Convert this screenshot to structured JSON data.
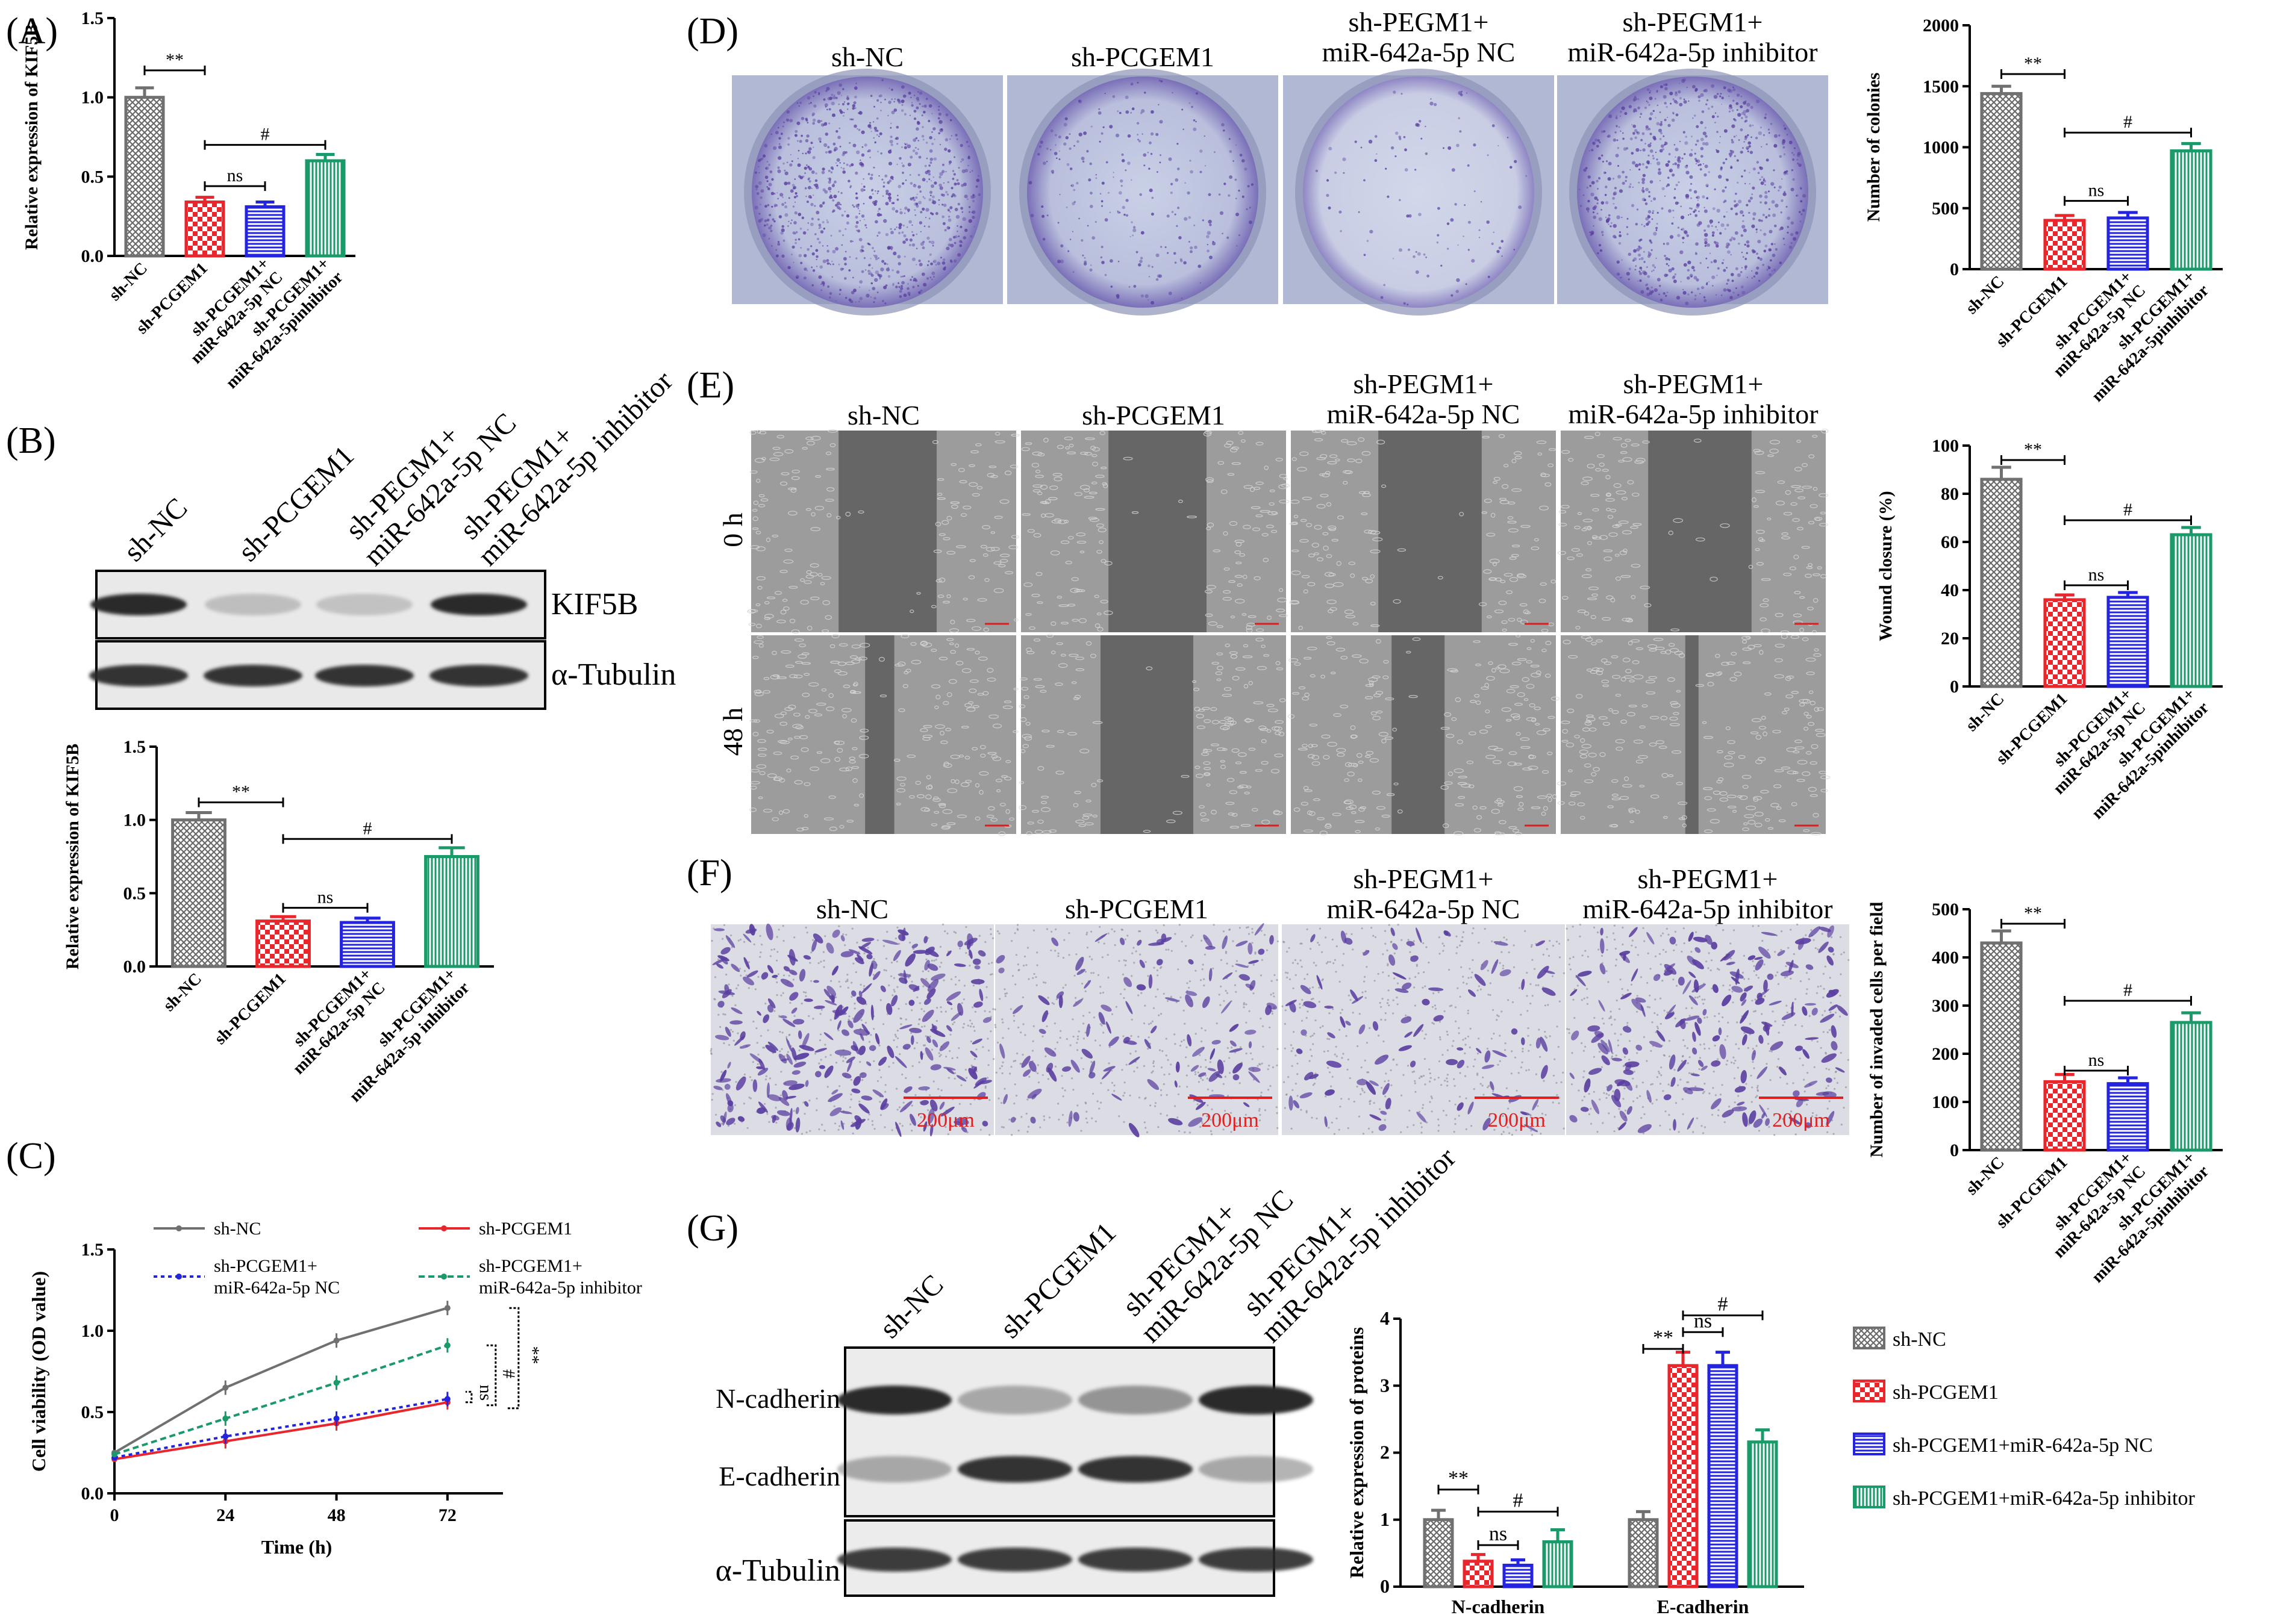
{
  "colors": {
    "gray": "#707070",
    "red": "#e8262c",
    "blue": "#2424e0",
    "green": "#1a9a68",
    "stain": "#5a3fa0",
    "blotDark": "#2a2a2a"
  },
  "panels": {
    "A": {
      "letter": "(A)",
      "chart": {
        "type": "bar",
        "ylabel": "Relative expression of KIF5B",
        "yticks": [
          "0.0",
          "0.5",
          "1.0",
          "1.5"
        ],
        "ylim": [
          0,
          1.5
        ],
        "categories": [
          "sh-NC",
          "sh-PCGEM1",
          "sh-PCGEM1+ miR-642a-5p NC",
          "sh-PCGEM1+ miR-642a-5pinhibitor"
        ],
        "cat_lines": [
          [
            "sh-NC"
          ],
          [
            "sh-PCGEM1"
          ],
          [
            "sh-PCGEM1+",
            "miR-642a-5p NC"
          ],
          [
            "sh-PCGEM1+",
            "miR-642a-5pinhibitor"
          ]
        ],
        "values": [
          1.0,
          0.34,
          0.31,
          0.6
        ],
        "errors": [
          0.06,
          0.03,
          0.03,
          0.04
        ],
        "sig": [
          {
            "from": 0,
            "to": 1,
            "label": "**",
            "level": 1.17
          },
          {
            "from": 1,
            "to": 3,
            "label": "#",
            "level": 0.7
          },
          {
            "from": 1,
            "to": 2,
            "label": "ns",
            "level": 0.44
          }
        ]
      }
    },
    "B": {
      "letter": "(B)",
      "lanes": [
        "sh-NC",
        "sh-PCGEM1",
        "sh-PEGM1+ miR-642a-5p NC",
        "sh-PEGM1+ miR-642a-5p inhibitor"
      ],
      "lane_lines": [
        [
          "sh-NC"
        ],
        [
          "sh-PCGEM1"
        ],
        [
          "sh-PEGM1+",
          "miR-642a-5p NC"
        ],
        [
          "sh-PEGM1+",
          "miR-642a-5p inhibitor"
        ]
      ],
      "blot_labels": [
        "KIF5B",
        "α-Tubulin"
      ],
      "chart": {
        "type": "bar",
        "ylabel": "Relative expression of KIF5B",
        "yticks": [
          "0.0",
          "0.5",
          "1.0",
          "1.5"
        ],
        "ylim": [
          0,
          1.5
        ],
        "categories": [
          "sh-NC",
          "sh-PCGEM1",
          "sh-PCGEM1+ miR-642a-5p NC",
          "sh-PCGEM1+ miR-642a-5p inhibitor"
        ],
        "cat_lines": [
          [
            "sh-NC"
          ],
          [
            "sh-PCGEM1"
          ],
          [
            "sh-PCGEM1+",
            "miR-642a-5p NC"
          ],
          [
            "sh-PCGEM1+",
            "miR-642a-5p inhibitor"
          ]
        ],
        "values": [
          1.0,
          0.31,
          0.3,
          0.75
        ],
        "errors": [
          0.05,
          0.03,
          0.03,
          0.06
        ],
        "sig": [
          {
            "from": 0,
            "to": 1,
            "label": "**",
            "level": 1.12
          },
          {
            "from": 1,
            "to": 3,
            "label": "#",
            "level": 0.87
          },
          {
            "from": 1,
            "to": 2,
            "label": "ns",
            "level": 0.4
          }
        ]
      }
    },
    "C": {
      "letter": "(C)",
      "chart": {
        "type": "line",
        "xlabel": "Time (h)",
        "ylabel": "Cell viability (OD value)",
        "x": [
          0,
          24,
          48,
          72
        ],
        "xticks": [
          "0",
          "24",
          "48",
          "72"
        ],
        "yticks": [
          "0.0",
          "0.5",
          "1.0",
          "1.5"
        ],
        "ylim": [
          0,
          1.5
        ],
        "xlim": [
          0,
          84
        ],
        "series": [
          {
            "name": "sh-NC",
            "lines": [
              "sh-NC"
            ],
            "values": [
              0.25,
              0.65,
              0.94,
              1.14
            ]
          },
          {
            "name": "sh-PCGEM1",
            "lines": [
              "sh-PCGEM1"
            ],
            "values": [
              0.21,
              0.32,
              0.43,
              0.56
            ]
          },
          {
            "name": "sh-PCGEM1+ miR-642a-5p NC",
            "lines": [
              "sh-PCGEM1+",
              "miR-642a-5p NC"
            ],
            "values": [
              0.22,
              0.35,
              0.46,
              0.58
            ]
          },
          {
            "name": "sh-PCGEM1+ miR-642a-5p inhibitor",
            "lines": [
              "sh-PCGEM1+",
              "miR-642a-5p inhibitor"
            ],
            "values": [
              0.24,
              0.46,
              0.68,
              0.91
            ]
          }
        ],
        "sig": [
          "ns",
          "#",
          "**"
        ]
      }
    },
    "D": {
      "letter": "(D)",
      "image_labels": [
        "sh-NC",
        "sh-PCGEM1",
        "sh-PEGM1+ miR-642a-5p NC",
        "sh-PEGM1+ miR-642a-5p inhibitor"
      ],
      "image_lines": [
        [
          "sh-NC"
        ],
        [
          "sh-PCGEM1"
        ],
        [
          "sh-PEGM1+",
          "miR-642a-5p NC"
        ],
        [
          "sh-PEGM1+",
          "miR-642a-5p inhibitor"
        ]
      ],
      "chart": {
        "type": "bar",
        "ylabel": "Number of colonies",
        "yticks": [
          "0",
          "500",
          "1000",
          "1500",
          "2000"
        ],
        "ylim": [
          0,
          2000
        ],
        "categories": [
          "sh-NC",
          "sh-PCGEM1",
          "sh-PCGEM1+ miR-642a-5p NC",
          "sh-PCGEM1+ miR-642a-5pinhibitor"
        ],
        "cat_lines": [
          [
            "sh-NC"
          ],
          [
            "sh-PCGEM1"
          ],
          [
            "sh-PCGEM1+",
            "miR-642a-5p NC"
          ],
          [
            "sh-PCGEM1+",
            "miR-642a-5pinhibitor"
          ]
        ],
        "values": [
          1440,
          400,
          420,
          970
        ],
        "errors": [
          60,
          40,
          45,
          60
        ],
        "sig": [
          {
            "from": 0,
            "to": 1,
            "label": "**",
            "level": 1600
          },
          {
            "from": 1,
            "to": 3,
            "label": "#",
            "level": 1120
          },
          {
            "from": 1,
            "to": 2,
            "label": "ns",
            "level": 560
          }
        ]
      }
    },
    "E": {
      "letter": "(E)",
      "image_labels": [
        "sh-NC",
        "sh-PCGEM1",
        "sh-PEGM1+ miR-642a-5p NC",
        "sh-PEGM1+ miR-642a-5p inhibitor"
      ],
      "image_lines": [
        [
          "sh-NC"
        ],
        [
          "sh-PCGEM1"
        ],
        [
          "sh-PEGM1+",
          "miR-642a-5p NC"
        ],
        [
          "sh-PEGM1+",
          "miR-642a-5p inhibitor"
        ]
      ],
      "row_labels": [
        "0 h",
        "48 h"
      ],
      "chart": {
        "type": "bar",
        "ylabel": "Wound closure (%)",
        "yticks": [
          "0",
          "20",
          "40",
          "60",
          "80",
          "100"
        ],
        "ylim": [
          0,
          100
        ],
        "categories": [
          "sh-NC",
          "sh-PCGEM1",
          "sh-PCGEM1+ miR-642a-5p NC",
          "sh-PCGEM1+ miR-642a-5pinhibitor"
        ],
        "cat_lines": [
          [
            "sh-NC"
          ],
          [
            "sh-PCGEM1"
          ],
          [
            "sh-PCGEM1+",
            "miR-642a-5p NC"
          ],
          [
            "sh-PCGEM1+",
            "miR-642a-5pinhibitor"
          ]
        ],
        "values": [
          86,
          36,
          37,
          63
        ],
        "errors": [
          5,
          2,
          2,
          3
        ],
        "sig": [
          {
            "from": 0,
            "to": 1,
            "label": "**",
            "level": 94
          },
          {
            "from": 1,
            "to": 3,
            "label": "#",
            "level": 69
          },
          {
            "from": 1,
            "to": 2,
            "label": "ns",
            "level": 42
          }
        ]
      }
    },
    "F": {
      "letter": "(F)",
      "image_labels": [
        "sh-NC",
        "sh-PCGEM1",
        "sh-PEGM1+ miR-642a-5p NC",
        "sh-PEGM1+ miR-642a-5p inhibitor"
      ],
      "image_lines": [
        [
          "sh-NC"
        ],
        [
          "sh-PCGEM1"
        ],
        [
          "sh-PEGM1+",
          "miR-642a-5p NC"
        ],
        [
          "sh-PEGM1+",
          "miR-642a-5p inhibitor"
        ]
      ],
      "scale_label": "200μm",
      "chart": {
        "type": "bar",
        "ylabel": "Number of invaded cells per field",
        "yticks": [
          "0",
          "100",
          "200",
          "300",
          "400",
          "500"
        ],
        "ylim": [
          0,
          500
        ],
        "categories": [
          "sh-NC",
          "sh-PCGEM1",
          "sh-PCGEM1+ miR-642a-5p NC",
          "sh-PCGEM1+ miR-642a-5pinhibitor"
        ],
        "cat_lines": [
          [
            "sh-NC"
          ],
          [
            "sh-PCGEM1"
          ],
          [
            "sh-PCGEM1+",
            "miR-642a-5p NC"
          ],
          [
            "sh-PCGEM1+",
            "miR-642a-5pinhibitor"
          ]
        ],
        "values": [
          430,
          142,
          138,
          265
        ],
        "errors": [
          25,
          15,
          12,
          20
        ],
        "sig": [
          {
            "from": 0,
            "to": 1,
            "label": "**",
            "level": 470
          },
          {
            "from": 1,
            "to": 3,
            "label": "#",
            "level": 310
          },
          {
            "from": 1,
            "to": 2,
            "label": "ns",
            "level": 165
          }
        ]
      }
    },
    "G": {
      "letter": "(G)",
      "lanes": [
        "sh-NC",
        "sh-PCGEM1",
        "sh-PEGM1+ miR-642a-5p NC",
        "sh-PEGM1+ miR-642a-5p inhibitor"
      ],
      "lane_lines": [
        [
          "sh-NC"
        ],
        [
          "sh-PCGEM1"
        ],
        [
          "sh-PEGM1+",
          "miR-642a-5p NC"
        ],
        [
          "sh-PEGM1+",
          "miR-642a-5p inhibitor"
        ]
      ],
      "blot_labels": [
        "N-cadherin",
        "E-cadherin",
        "α-Tubulin"
      ],
      "chart": {
        "type": "bar",
        "ylabel": "Relative expression of proteins",
        "yticks": [
          "0",
          "1",
          "2",
          "3",
          "4"
        ],
        "ylim": [
          0,
          4
        ],
        "categories": [
          "N-cadherin",
          "E-cadherin"
        ],
        "series": [
          {
            "name": "sh-NC",
            "values": [
              1.0,
              1.0
            ],
            "errors": [
              0.14,
              0.12
            ]
          },
          {
            "name": "sh-PCGEM1",
            "values": [
              0.38,
              3.3
            ],
            "errors": [
              0.1,
              0.2
            ]
          },
          {
            "name": "sh-PCGEM1+miR-642a-5p NC",
            "values": [
              0.32,
              3.3
            ],
            "errors": [
              0.08,
              0.2
            ]
          },
          {
            "name": "sh-PCGEM1+miR-642a-5p inhibitor",
            "values": [
              0.67,
              2.16
            ],
            "errors": [
              0.18,
              0.18
            ]
          }
        ],
        "sig": [
          {
            "group": 0,
            "from": 0,
            "to": 1,
            "label": "**",
            "level": 1.45
          },
          {
            "group": 0,
            "from": 1,
            "to": 3,
            "label": "#",
            "level": 1.12
          },
          {
            "group": 0,
            "from": 1,
            "to": 2,
            "label": "ns",
            "level": 0.62
          },
          {
            "group": 1,
            "from": 0,
            "to": 1,
            "label": "**",
            "level": 3.55
          },
          {
            "group": 1,
            "from": 1,
            "to": 2,
            "label": "ns",
            "level": 3.8
          },
          {
            "group": 1,
            "from": 1,
            "to": 3,
            "label": "#",
            "level": 4.05
          }
        ]
      }
    }
  }
}
